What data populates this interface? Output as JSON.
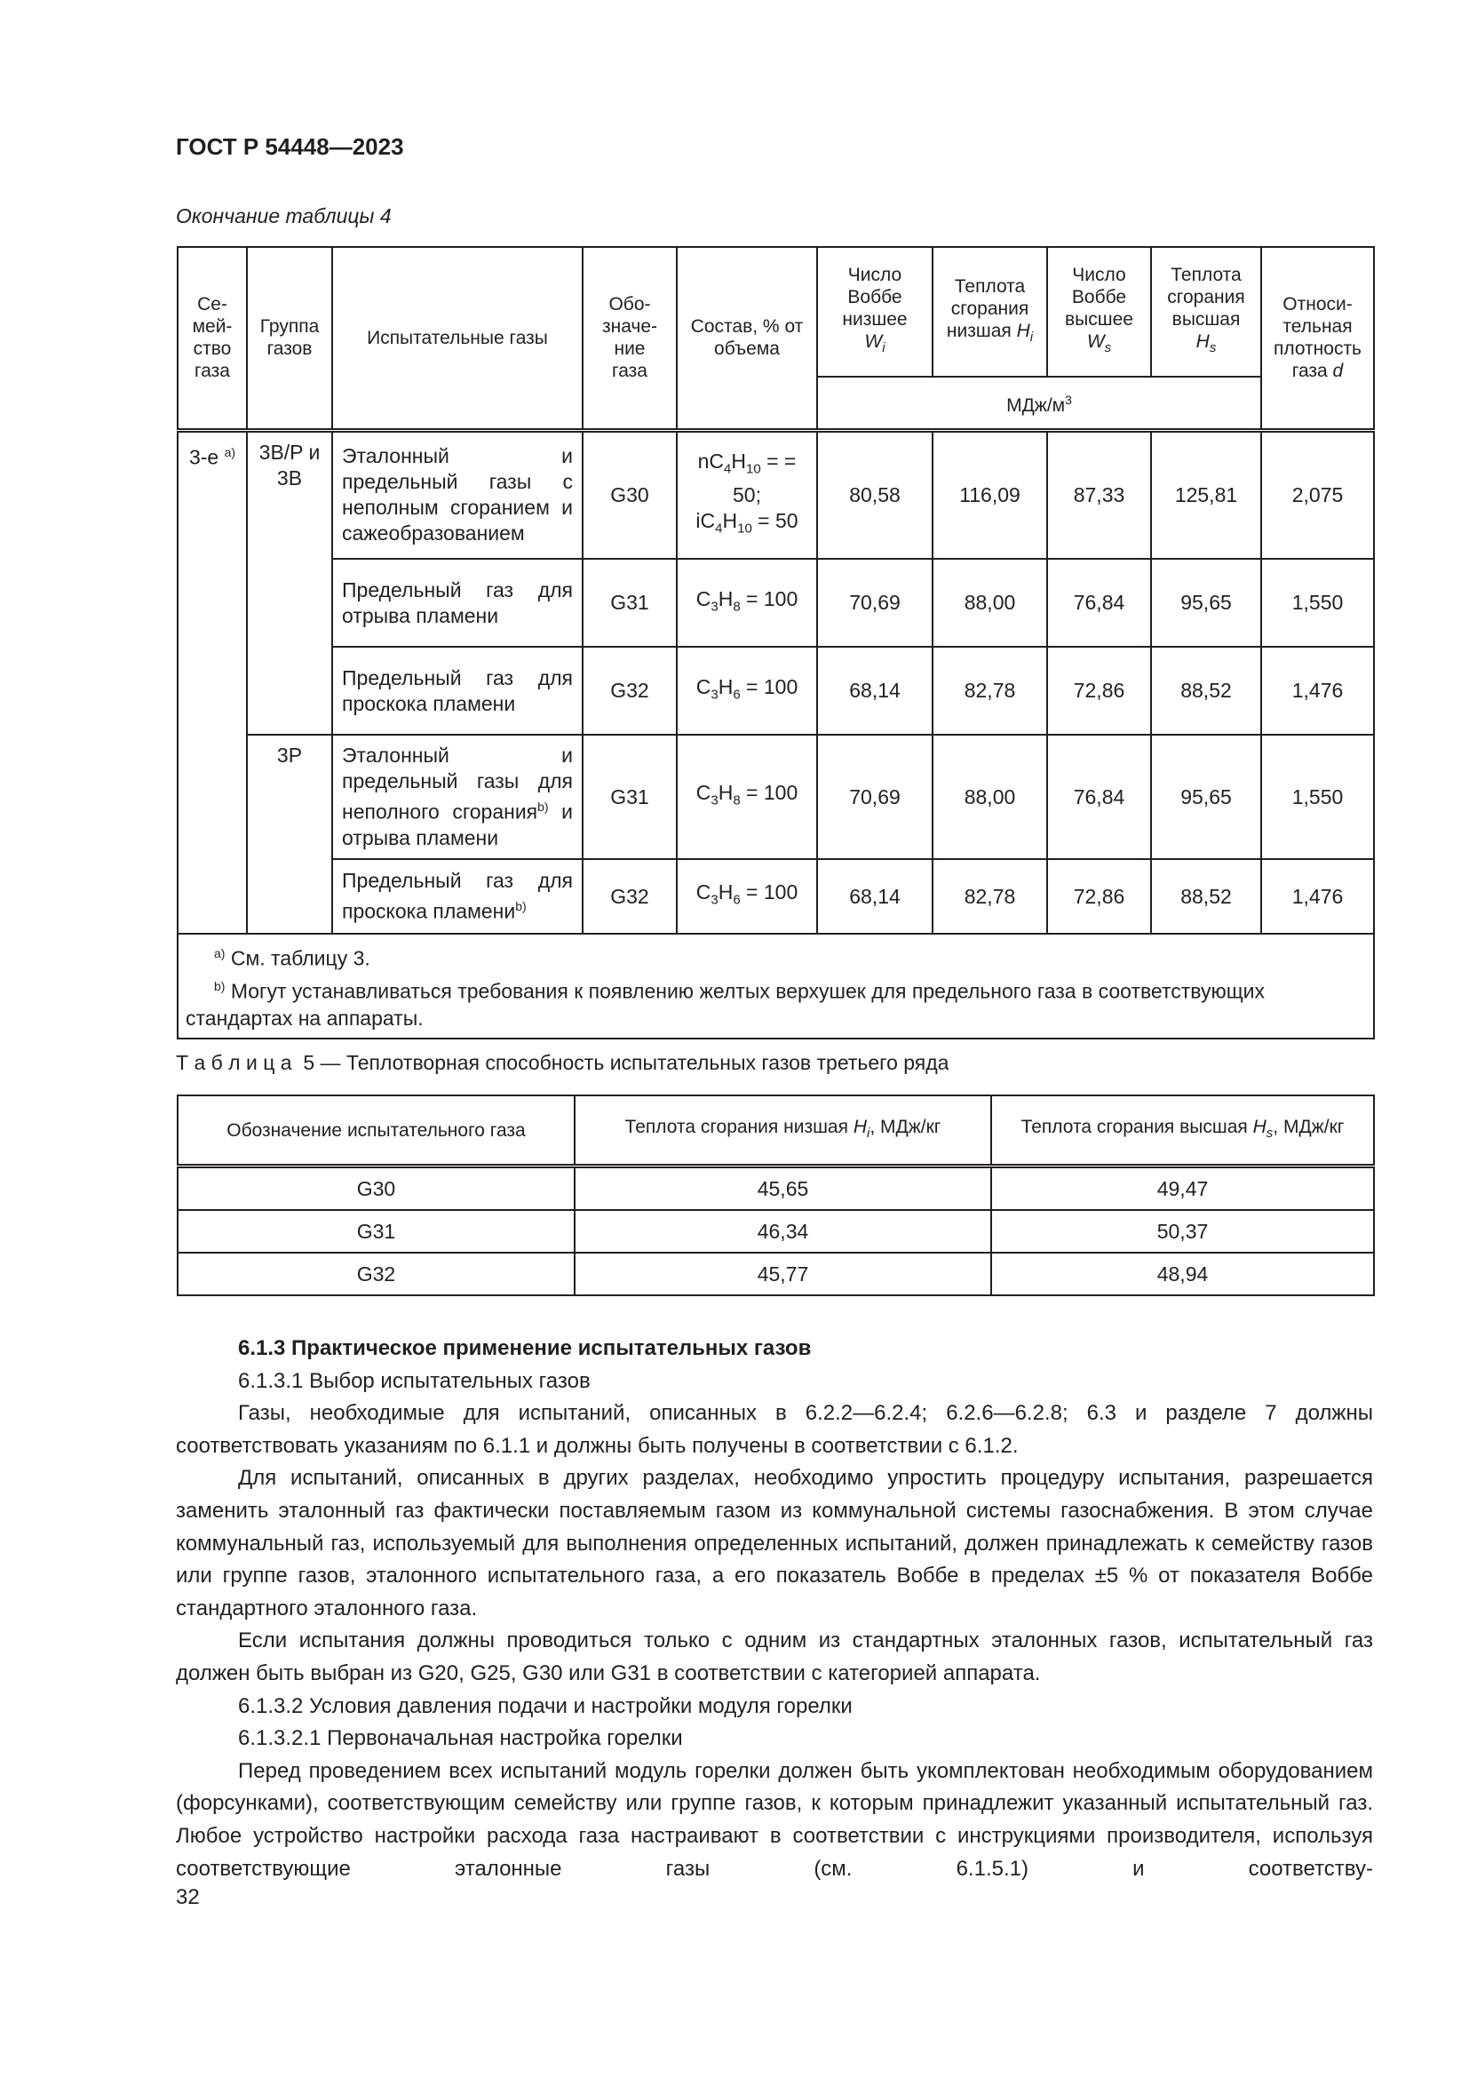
{
  "header": "ГОСТ Р 54448—2023",
  "table4": {
    "caption": "Окончание таблицы 4",
    "headers": [
      "Се-\nмей-\nство\nгаза",
      "Группа газов",
      "Испытательные газы",
      "Обо-\nзначе-\nние\nгаза",
      "Состав, % от объема",
      "Число Воббе низшее",
      "Теплота сгорания низшая",
      "Число Воббе высшее",
      "Теплота сгорания высшая",
      "Относи-\nтельная плотность газа"
    ],
    "sym": {
      "wi": "W",
      "wi_sub": "i",
      "hi": "H",
      "hi_sub": "i",
      "ws": "W",
      "ws_sub": "s",
      "hs": "H",
      "hs_sub": "s",
      "d": "d"
    },
    "units": "МДж/м",
    "units_sup": "3",
    "family": "3-е",
    "family_note": "a)",
    "groups": [
      "3B/P и 3B",
      "3P"
    ],
    "rows": [
      {
        "desc": "Эталонный и предельный газы с неполным сгоранием и сажеобразованием",
        "code": "G30",
        "comp1": "nC",
        "comp1s": "4",
        "comp1h": "H",
        "comp1hs": "10",
        "comp1e": " = = 50;",
        "comp2": "iC",
        "comp2s": "4",
        "comp2h": "H",
        "comp2hs": "10",
        "comp2e": " = 50",
        "wi": "80,58",
        "hi": "116,09",
        "ws": "87,33",
        "hs": "125,81",
        "d": "2,075"
      },
      {
        "desc": "Предельный газ для отрыва пламени",
        "code": "G31",
        "c": "C",
        "cs": "3",
        "h": "H",
        "hs_": "8",
        "e": " = 100",
        "wi": "70,69",
        "hi": "88,00",
        "ws": "76,84",
        "hs": "95,65",
        "d": "1,550"
      },
      {
        "desc": "Предельный газ для проскока пламени",
        "code": "G32",
        "c": "C",
        "cs": "3",
        "h": "H",
        "hs_": "6",
        "e": " = 100",
        "wi": "68,14",
        "hi": "82,78",
        "ws": "72,86",
        "hs": "88,52",
        "d": "1,476"
      },
      {
        "desc": "Эталонный и предельный газы для неполного сгорания",
        "note": "b)",
        "desc2": " и отрыва пламени",
        "code": "G31",
        "c": "C",
        "cs": "3",
        "h": "H",
        "hs_": "8",
        "e": " = 100",
        "wi": "70,69",
        "hi": "88,00",
        "ws": "76,84",
        "hs": "95,65",
        "d": "1,550"
      },
      {
        "desc": "Предельный газ для проскока пламени",
        "note": "b)",
        "code": "G32",
        "c": "C",
        "cs": "3",
        "h": "H",
        "hs_": "6",
        "e": " = 100",
        "wi": "68,14",
        "hi": "82,78",
        "ws": "72,86",
        "hs": "88,52",
        "d": "1,476"
      }
    ],
    "footnotes": [
      {
        "mark": "a)",
        "text": " См. таблицу 3."
      },
      {
        "mark": "b)",
        "text": " Могут устанавливаться требования к появлению желтых верхушек для предельного газа в соответствующих стандартах на аппараты."
      }
    ]
  },
  "table5": {
    "caption": "Т а б л и ц а  5 — Теплотворная способность испытательных газов третьего ряда",
    "headers": [
      "Обозначение испытательного газа",
      "Теплота сгорания низшая ",
      "Теплота сгорания высшая "
    ],
    "h_i": "H",
    "h_i_sub": "i",
    "h_s": "H",
    "h_s_sub": "s",
    "unit": ", МДж/кг",
    "rows": [
      [
        "G30",
        "45,65",
        "49,47"
      ],
      [
        "G31",
        "46,34",
        "50,37"
      ],
      [
        "G32",
        "45,77",
        "48,94"
      ]
    ]
  },
  "body": {
    "paragraphs": [
      "6.1.3 Практическое применение испытательных газов",
      "6.1.3.1 Выбор испытательных газов",
      "Газы, необходимые для испытаний, описанных в 6.2.2—6.2.4; 6.2.6—6.2.8; 6.3 и разделе 7 должны соответствовать указаниям по 6.1.1 и должны быть получены в соответствии с 6.1.2.",
      "Для испытаний, описанных в других разделах, необходимо упростить процедуру испытания, разрешается заменить эталонный газ фактически поставляемым газом из коммунальной системы газоснабжения. В этом случае коммунальный газ, используемый для выполнения определенных испытаний, должен принадлежать к семейству газов или группе газов, эталонного испытательного газа, а его показатель Воббе в пределах ±5 % от показателя Воббе стандартного эталонного газа.",
      "Если испытания должны проводиться только с одним из стандартных эталонных газов, испытательный газ должен быть выбран из G20, G25, G30 или G31 в соответствии с категорией аппарата.",
      "6.1.3.2 Условия давления подачи и настройки модуля горелки",
      "6.1.3.2.1 Первоначальная настройка горелки",
      "Перед проведением всех испытаний модуль горелки должен быть укомплектован необходимым оборудованием (форсунками), соответствующим семейству или группе газов, к которым принадлежит указанный испытательный газ. Любое устройство настройки расхода газа настраивают в соответствии с инструкциями производителя, используя соответствующие эталонные газы (см. 6.1.5.1) и соответству-"
    ]
  },
  "page_number": "32"
}
